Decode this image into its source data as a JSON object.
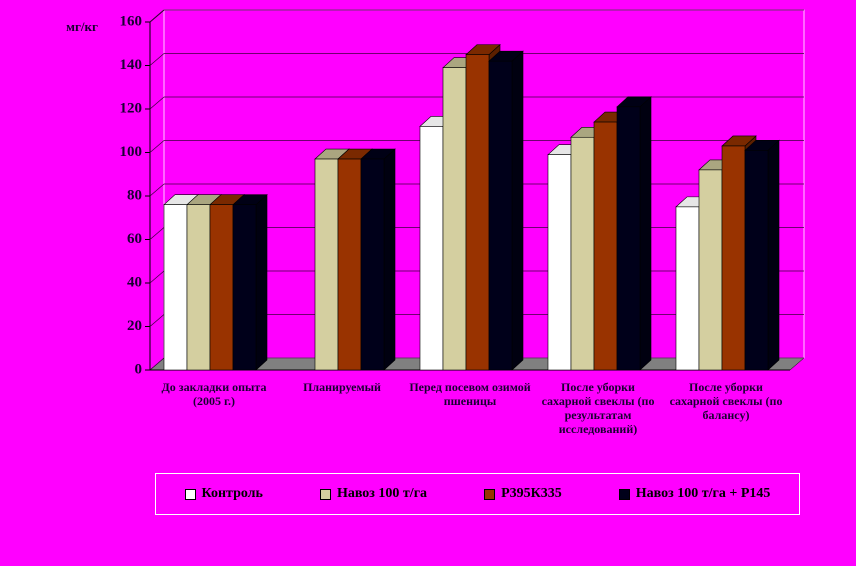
{
  "chart_data": {
    "type": "bar3d",
    "y_label": "мг/кг",
    "categories": [
      "До закладки опыта (2005 г.)",
      "Планируемый",
      "Перед посевом озимой пшеницы",
      "После уборки сахарной свеклы (по результатам исследований)",
      "После уборки сахарной свеклы (по балансу)"
    ],
    "series": [
      {
        "name": "Контроль",
        "color": "#ffffff",
        "values": [
          76,
          null,
          112,
          99,
          75
        ]
      },
      {
        "name": "Навоз 100 т/га",
        "color": "#d4cfa0",
        "values": [
          76,
          97,
          139,
          107,
          92
        ]
      },
      {
        "name": "Р395К335",
        "color": "#993300",
        "values": [
          76,
          97,
          145,
          114,
          103
        ]
      },
      {
        "name": "Навоз 100 т/га + Р145",
        "color": "#00001a",
        "values": [
          76,
          97,
          142,
          121,
          101
        ]
      }
    ],
    "ylim": [
      0,
      160
    ],
    "yticks": [
      0,
      20,
      40,
      60,
      80,
      100,
      120,
      140,
      160
    ],
    "grid": true,
    "legend": "bottom"
  }
}
